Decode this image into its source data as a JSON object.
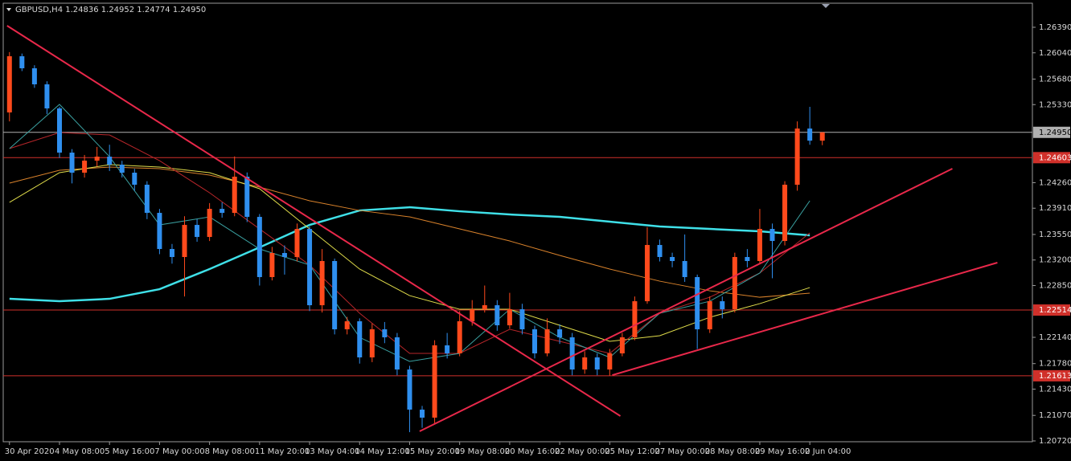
{
  "chart_data": {
    "type": "candlestick",
    "title": "GBPUSD,H4  1.24836 1.24952 1.24774 1.24950",
    "categories": [
      "30 Apr 2020",
      null,
      null,
      null,
      "4 May 08:00",
      null,
      null,
      null,
      "5 May 16:00",
      null,
      null,
      null,
      "7 May 00:00",
      null,
      null,
      null,
      "8 May 08:00",
      null,
      null,
      null,
      "11 May 20:00",
      null,
      null,
      null,
      "13 May 04:00",
      null,
      null,
      null,
      "14 May 12:00",
      null,
      null,
      null,
      "15 May 20:00",
      null,
      null,
      null,
      "19 May 08:00",
      null,
      null,
      null,
      "20 May 16:00",
      null,
      null,
      null,
      "22 May 00:00",
      null,
      null,
      null,
      "25 May 12:00",
      null,
      null,
      null,
      "27 May 00:00",
      null,
      null,
      null,
      "28 May 08:00",
      null,
      null,
      null,
      "29 May 16:00",
      null,
      null,
      null,
      "2 Jun 04:00",
      null
    ],
    "open": [
      1.25223,
      1.25993,
      1.25828,
      1.25608,
      1.25278,
      1.24672,
      1.24397,
      1.24562,
      1.24617,
      1.24507,
      1.24397,
      1.24232,
      1.23846,
      1.23351,
      1.23241,
      1.23681,
      1.23516,
      1.23901,
      1.23846,
      1.24342,
      1.23791,
      1.22966,
      1.23296,
      1.23241,
      1.23626,
      1.2258,
      1.23186,
      1.2225,
      1.2236,
      1.21865,
      1.2225,
      1.2214,
      1.21699,
      1.21149,
      1.21039,
      1.2203,
      1.2192,
      1.2236,
      1.22525,
      1.2258,
      1.22305,
      1.22525,
      1.2225,
      1.2192,
      1.2225,
      1.2214,
      1.21699,
      1.21865,
      1.21699,
      1.2192,
      1.2214,
      1.22635,
      1.23406,
      1.23241,
      1.23186,
      1.22966,
      1.2225,
      1.22635,
      1.22525,
      1.23241,
      1.23186,
      1.23626,
      1.23461,
      1.24232,
      1.25002,
      1.24836
    ],
    "high": [
      1.2605,
      1.2603,
      1.2587,
      1.2565,
      1.253,
      1.2472,
      1.2464,
      1.2475,
      1.2478,
      1.2456,
      1.2445,
      1.2428,
      1.239,
      1.2342,
      1.238,
      1.2376,
      1.2398,
      1.2399,
      1.2462,
      1.244,
      1.2383,
      1.2338,
      1.234,
      1.237,
      1.2366,
      1.2335,
      1.2322,
      1.2242,
      1.224,
      1.2233,
      1.2235,
      1.222,
      1.2175,
      1.212,
      1.221,
      1.222,
      1.225,
      1.2265,
      1.2285,
      1.2265,
      1.2275,
      1.226,
      1.223,
      1.224,
      1.2232,
      1.222,
      1.2195,
      1.2192,
      1.2198,
      1.222,
      1.227,
      1.2365,
      1.2348,
      1.233,
      1.2355,
      1.23,
      1.227,
      1.227,
      1.233,
      1.2335,
      1.239,
      1.237,
      1.2428,
      1.251,
      1.253,
      1.24952
    ],
    "low": [
      1.251,
      1.2579,
      1.2556,
      1.252,
      1.246,
      1.2425,
      1.2433,
      1.2448,
      1.2442,
      1.2433,
      1.2415,
      1.2376,
      1.2328,
      1.2315,
      1.227,
      1.2345,
      1.2346,
      1.2378,
      1.238,
      1.2372,
      1.2285,
      1.2292,
      1.23,
      1.2318,
      1.225,
      1.2248,
      1.2218,
      1.2218,
      1.2178,
      1.218,
      1.2206,
      1.2162,
      1.2084,
      1.209,
      1.2095,
      1.2185,
      1.2188,
      1.223,
      1.2248,
      1.2223,
      1.2226,
      1.2218,
      1.2185,
      1.2188,
      1.2205,
      1.2162,
      1.2164,
      1.2162,
      1.21613,
      1.2188,
      1.221,
      1.226,
      1.2318,
      1.231,
      1.229,
      1.2198,
      1.222,
      1.224,
      1.2248,
      1.231,
      1.2315,
      1.2295,
      1.234,
      1.2415,
      1.2478,
      1.24774
    ],
    "close": [
      1.25993,
      1.25828,
      1.25608,
      1.25278,
      1.24672,
      1.24397,
      1.24562,
      1.24617,
      1.24507,
      1.24397,
      1.24232,
      1.23846,
      1.23351,
      1.23241,
      1.23681,
      1.23516,
      1.23901,
      1.23846,
      1.24342,
      1.23791,
      1.22966,
      1.23296,
      1.23241,
      1.23626,
      1.2258,
      1.23186,
      1.2225,
      1.2236,
      1.21865,
      1.2225,
      1.2214,
      1.21699,
      1.21149,
      1.21039,
      1.2203,
      1.2192,
      1.2236,
      1.22525,
      1.2258,
      1.22305,
      1.22525,
      1.2225,
      1.2192,
      1.2225,
      1.2214,
      1.21699,
      1.21865,
      1.21699,
      1.2192,
      1.2214,
      1.22635,
      1.23406,
      1.23241,
      1.23186,
      1.22966,
      1.2225,
      1.22635,
      1.22525,
      1.23241,
      1.23186,
      1.23626,
      1.23461,
      1.24232,
      1.25002,
      1.24836,
      1.2495
    ],
    "up_color": "#ff4a1c",
    "down_color": "#2f8fef",
    "series": [
      {
        "color": "#3fe0e8",
        "width": 2.5,
        "x": [
          0,
          4,
          8,
          12,
          16,
          20,
          24,
          28,
          32,
          36,
          40,
          44,
          48,
          52,
          56,
          60,
          64
        ],
        "values": [
          1.22668,
          1.22635,
          1.22668,
          1.228,
          1.23076,
          1.23373,
          1.23681,
          1.23879,
          1.23923,
          1.23868,
          1.23824,
          1.23791,
          1.23725,
          1.23659,
          1.23626,
          1.23593,
          1.23538
        ]
      },
      {
        "color": "#d9822b",
        "width": 1,
        "x": [
          0,
          4,
          8,
          12,
          16,
          20,
          24,
          28,
          32,
          36,
          40,
          44,
          48,
          52,
          56,
          60,
          64
        ],
        "values": [
          1.24254,
          1.2443,
          1.24474,
          1.24452,
          1.24364,
          1.24199,
          1.24012,
          1.23879,
          1.23791,
          1.23626,
          1.23461,
          1.23263,
          1.23076,
          1.2291,
          1.22778,
          1.2269,
          1.22745
        ]
      },
      {
        "color": "#e0dc4a",
        "width": 1,
        "x": [
          0,
          4,
          8,
          12,
          16,
          20,
          24,
          28,
          32,
          36,
          40,
          44,
          48,
          52,
          56,
          60,
          64
        ],
        "values": [
          1.2399,
          1.24397,
          1.24507,
          1.24474,
          1.24397,
          1.24177,
          1.23626,
          1.23076,
          1.22712,
          1.22525,
          1.22525,
          1.22305,
          1.22085,
          1.22162,
          1.22415,
          1.22602,
          1.22822
        ]
      },
      {
        "color": "#b8262a",
        "width": 1,
        "x": [
          0,
          4,
          8,
          12,
          16,
          20,
          24,
          28,
          32,
          36,
          40,
          44,
          48,
          52,
          56,
          60,
          64
        ],
        "values": [
          1.24727,
          1.24947,
          1.24914,
          1.24562,
          1.24122,
          1.23626,
          1.23131,
          1.2247,
          1.2192,
          1.2192,
          1.2225,
          1.22085,
          1.2192,
          1.2247,
          1.2269,
          1.23021,
          1.23571
        ]
      },
      {
        "color": "#3aa0a0",
        "width": 1,
        "x": [
          0,
          4,
          8,
          12,
          16,
          20,
          24,
          28,
          32,
          36,
          40,
          44,
          48,
          52,
          56,
          60,
          64
        ],
        "values": [
          1.24727,
          1.25333,
          1.24617,
          1.23681,
          1.23791,
          1.23351,
          1.23131,
          1.2214,
          1.2181,
          1.2192,
          1.22525,
          1.2214,
          1.21865,
          1.2247,
          1.22635,
          1.23021,
          1.24012
        ]
      }
    ],
    "trendlines": [
      {
        "color": "#e8284a",
        "x": [
          -0.19,
          48.85
        ],
        "y": [
          1.26412,
          1.21061
        ]
      },
      {
        "color": "#e8284a",
        "x": [
          32.8,
          75.4
        ],
        "y": [
          1.20852,
          1.24452
        ]
      },
      {
        "color": "#e8284a",
        "x": [
          48.2,
          79
        ],
        "y": [
          1.21622,
          1.23164
        ]
      }
    ],
    "levels": [
      {
        "value": 1.2495,
        "label": "1.24950",
        "color": "#b0b0b0"
      },
      {
        "value": 1.24603,
        "color": "#d0302a"
      },
      {
        "value": 1.22514,
        "color": "#d0302a"
      },
      {
        "value": 1.21613,
        "color": "#d0302a"
      }
    ],
    "xlim": [
      -0.5,
      81.8
    ],
    "ylim": [
      1.20709,
      1.26764
    ],
    "yticks": [
      {
        "value": 1.2639,
        "label": "1.26390"
      },
      {
        "value": 1.2604,
        "label": "1.26040"
      },
      {
        "value": 1.2568,
        "label": "1.25680"
      },
      {
        "value": 1.2533,
        "label": "1.25330"
      },
      {
        "value": 1.2426,
        "label": "1.24260"
      },
      {
        "value": 1.2391,
        "label": "1.23910"
      },
      {
        "value": 1.2355,
        "label": "1.23550"
      },
      {
        "value": 1.232,
        "label": "1.23200"
      },
      {
        "value": 1.2285,
        "label": "1.22850"
      },
      {
        "value": 1.2214,
        "label": "1.22140"
      },
      {
        "value": 1.2178,
        "label": "1.21780"
      },
      {
        "value": 1.2143,
        "label": "1.21430"
      },
      {
        "value": 1.2107,
        "label": "1.21070"
      },
      {
        "value": 1.2072,
        "label": "1.20720"
      }
    ]
  }
}
